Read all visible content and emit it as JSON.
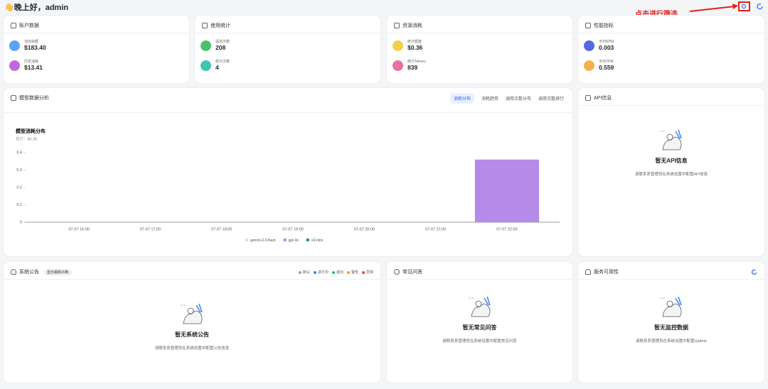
{
  "header": {
    "greeting": "👋晚上好，admin",
    "annotation": "点击进行筛选"
  },
  "stat_cards": [
    {
      "title": "账户数据",
      "items": [
        {
          "label": "当前余额",
          "value": "$183.40"
        },
        {
          "label": "历史消耗",
          "value": "$13.41"
        }
      ]
    },
    {
      "title": "使用统计",
      "items": [
        {
          "label": "请求次数",
          "value": "208"
        },
        {
          "label": "统计次数",
          "value": "4"
        }
      ]
    },
    {
      "title": "资源消耗",
      "items": [
        {
          "label": "统计额度",
          "value": "$0.36"
        },
        {
          "label": "统计Tokens",
          "value": "839"
        }
      ]
    },
    {
      "title": "性能指标",
      "items": [
        {
          "label": "平均RPM",
          "value": "0.003"
        },
        {
          "label": "平均TPM",
          "value": "0.559"
        }
      ]
    }
  ],
  "analysis": {
    "title": "模型数据分析",
    "tabs": [
      "消耗分布",
      "消耗趋势",
      "调用次数分布",
      "调用次数排行"
    ]
  },
  "chart_data": {
    "type": "bar",
    "stacked": true,
    "title": "模型消耗分布",
    "subtitle": "总计：$0.36",
    "categories": [
      "07-07 16:00",
      "07-07 17:00",
      "07-07 18:00",
      "07-07 19:00",
      "07-07 20:00",
      "07-07 21:00",
      "07-07 22:00"
    ],
    "series": [
      {
        "name": "gemini-2.0-flash",
        "color": "#f6cbe9",
        "values": [
          0,
          0,
          0,
          0,
          0,
          0,
          0
        ]
      },
      {
        "name": "gpt-4o",
        "color": "#b58ae8",
        "values": [
          0,
          0,
          0,
          0,
          0,
          0,
          0.36
        ]
      },
      {
        "name": "o3-mini",
        "color": "#17968a",
        "values": [
          0,
          0,
          0,
          0,
          0,
          0,
          0
        ]
      }
    ],
    "ylim": [
      0,
      0.4
    ],
    "yticks": [
      0,
      0.1,
      0.2,
      0.3,
      0.4
    ],
    "grid": false,
    "legend": "bottom"
  },
  "api_info": {
    "title": "API信息",
    "empty_title": "暂无API信息",
    "empty_text": "请联系系管理员在系统设置中配置API信息"
  },
  "announcements": {
    "title": "系统公告",
    "badge": "显示最新20条",
    "legend": [
      {
        "name": "默认",
        "color": "#9ca3af"
      },
      {
        "name": "进行中",
        "color": "#3b82f6"
      },
      {
        "name": "成功",
        "color": "#22c55e"
      },
      {
        "name": "警告",
        "color": "#f59e0b"
      },
      {
        "name": "异常",
        "color": "#ef4444"
      }
    ],
    "empty_title": "暂无系统公告",
    "empty_text": "请联系系管理员在系统设置中配置公告信息"
  },
  "faq": {
    "title": "常见问答",
    "empty_title": "暂无常见问答",
    "empty_text": "请联系系管理员在系统设置中配置常见问答"
  },
  "uptime": {
    "title": "服务可用性",
    "empty_title": "暂无监控数据",
    "empty_text": "请联系系管理员在系统设置中配置Uptime"
  }
}
